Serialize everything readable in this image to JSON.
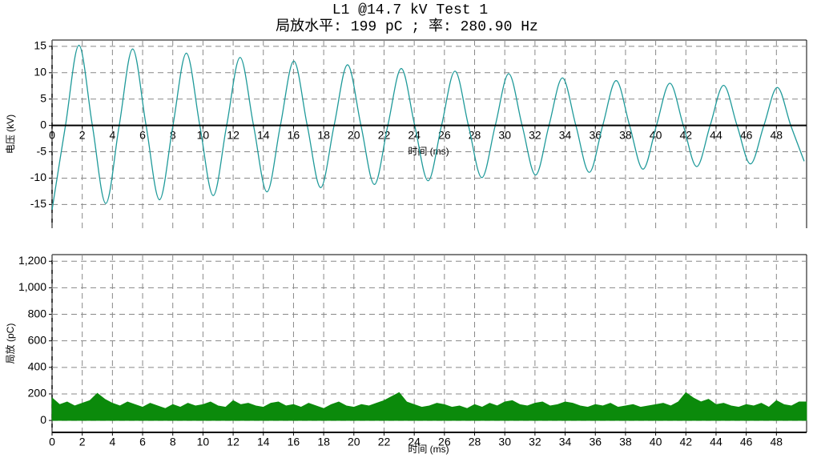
{
  "chart_data": [
    {
      "type": "line",
      "title": "L1 @14.7 kV Test 1",
      "subtitle": "局放水平: 199 pC ; 率: 280.90 Hz",
      "ylabel": "电压 (kV)",
      "xlabel": "时间 (ms)",
      "color": "#1f9a9a",
      "grid": true,
      "xlim": [
        0,
        50
      ],
      "xticks": [
        0,
        2,
        4,
        6,
        8,
        10,
        12,
        14,
        16,
        18,
        20,
        22,
        24,
        26,
        28,
        30,
        32,
        34,
        36,
        38,
        40,
        42,
        44,
        46,
        48
      ],
      "ylim": [
        -19.5,
        16.2
      ],
      "yticks": [
        -15,
        -10,
        -5,
        0,
        5,
        10,
        15
      ],
      "x": [
        0,
        0.89,
        1.78,
        2.67,
        3.56,
        4.45,
        5.34,
        6.23,
        7.12,
        8.01,
        8.9,
        9.79,
        10.68,
        11.57,
        12.46,
        13.35,
        14.24,
        15.13,
        16.02,
        16.91,
        17.8,
        18.69,
        19.58,
        20.47,
        21.36,
        22.25,
        23.14,
        24.03,
        24.92,
        25.81,
        26.7,
        27.59,
        28.48,
        29.37,
        30.26,
        31.15,
        32.04,
        32.93,
        33.82,
        34.71,
        35.6,
        36.49,
        37.38,
        38.27,
        39.16,
        40.05,
        40.94,
        41.83,
        42.72,
        43.61,
        44.5,
        45.39,
        46.28,
        47.17,
        48.06,
        48.95,
        49.84
      ],
      "values": [
        -16,
        0,
        15.2,
        0,
        -14.8,
        0,
        14.5,
        0,
        -14.1,
        0,
        13.7,
        0,
        -13.3,
        0,
        12.9,
        0,
        -12.6,
        0,
        12.2,
        0,
        -11.8,
        0,
        11.5,
        0,
        -11.2,
        0,
        10.8,
        0,
        -10.5,
        0,
        10.3,
        0,
        -9.9,
        0,
        9.8,
        0,
        -9.4,
        0,
        9.0,
        0,
        -8.9,
        0,
        8.5,
        0,
        -8.3,
        0,
        8.0,
        0,
        -7.8,
        0,
        7.6,
        0,
        -7.3,
        0,
        7.2,
        0,
        -6.8
      ]
    },
    {
      "type": "area",
      "ylabel": "局放 (pC)",
      "xlabel": "时间 (ms)",
      "color": "#0b8a0b",
      "grid": true,
      "xlim": [
        0,
        50
      ],
      "xticks": [
        0,
        2,
        4,
        6,
        8,
        10,
        12,
        14,
        16,
        18,
        20,
        22,
        24,
        26,
        28,
        30,
        32,
        34,
        36,
        38,
        40,
        42,
        44,
        46,
        48
      ],
      "ylim": [
        -90,
        1250
      ],
      "yticks": [
        0,
        200,
        400,
        600,
        800,
        {
          "value": 1000,
          "label": "1,000"
        },
        {
          "value": 1200,
          "label": "1,200"
        }
      ],
      "x": [
        0,
        0.5,
        1,
        1.5,
        2,
        2.5,
        3,
        3.5,
        4,
        4.5,
        5,
        5.5,
        6,
        6.5,
        7,
        7.5,
        8,
        8.5,
        9,
        9.5,
        10,
        10.5,
        11,
        11.5,
        12,
        12.5,
        13,
        13.5,
        14,
        14.5,
        15,
        15.5,
        16,
        16.5,
        17,
        17.5,
        18,
        18.5,
        19,
        19.5,
        20,
        20.5,
        21,
        21.5,
        22,
        22.5,
        23,
        23.5,
        24,
        24.5,
        25,
        25.5,
        26,
        26.5,
        27,
        27.5,
        28,
        28.5,
        29,
        29.5,
        30,
        30.5,
        31,
        31.5,
        32,
        32.5,
        33,
        33.5,
        34,
        34.5,
        35,
        35.5,
        36,
        36.5,
        37,
        37.5,
        38,
        38.5,
        39,
        39.5,
        40,
        40.5,
        41,
        41.5,
        42,
        42.5,
        43,
        43.5,
        44,
        44.5,
        45,
        45.5,
        46,
        46.5,
        47,
        47.5,
        48,
        48.5,
        49,
        49.5
      ],
      "values": [
        170,
        120,
        140,
        110,
        130,
        150,
        205,
        160,
        130,
        110,
        140,
        120,
        100,
        130,
        110,
        90,
        120,
        100,
        130,
        110,
        120,
        140,
        110,
        100,
        150,
        120,
        130,
        110,
        100,
        130,
        140,
        110,
        120,
        100,
        130,
        110,
        90,
        120,
        140,
        110,
        100,
        120,
        110,
        130,
        150,
        180,
        210,
        140,
        120,
        100,
        110,
        130,
        120,
        100,
        110,
        90,
        120,
        100,
        130,
        110,
        140,
        150,
        120,
        110,
        130,
        140,
        110,
        120,
        140,
        130,
        110,
        100,
        120,
        110,
        130,
        100,
        110,
        120,
        100,
        110,
        120,
        130,
        110,
        140,
        210,
        170,
        140,
        160,
        120,
        130,
        110,
        100,
        120,
        110,
        130,
        100,
        150,
        120,
        110,
        140
      ]
    }
  ]
}
